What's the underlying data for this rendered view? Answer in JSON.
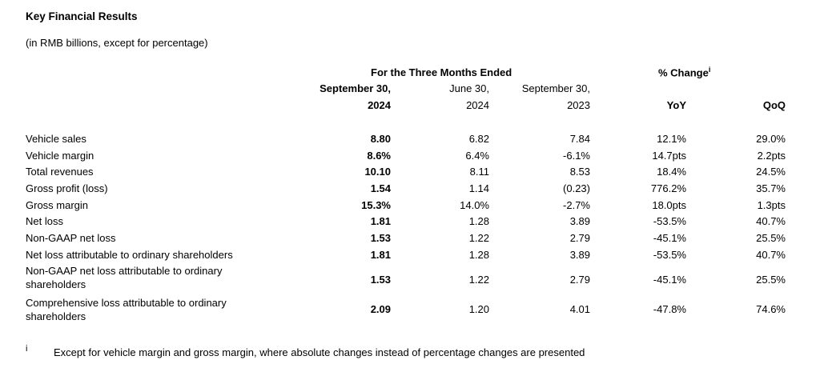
{
  "title": "Key Financial Results",
  "subtitle": "(in RMB billions, except for percentage)",
  "headers": {
    "group_three_months": "For the Three Months Ended",
    "group_change": "% Change",
    "group_change_sup": "i",
    "col1_line1": "September 30,",
    "col1_line2": "2024",
    "col2_line1": "June 30,",
    "col2_line2": "2024",
    "col3_line1": "September 30,",
    "col3_line2": "2023",
    "col4": "YoY",
    "col5": "QoQ"
  },
  "rows": [
    {
      "label": "Vehicle sales",
      "values": [
        "8.80",
        "6.82",
        "7.84",
        "12.1%",
        "29.0%"
      ]
    },
    {
      "label": "Vehicle margin",
      "values": [
        "8.6%",
        "6.4%",
        "-6.1%",
        "14.7pts",
        "2.2pts"
      ]
    },
    {
      "label": "Total revenues",
      "values": [
        "10.10",
        "8.11",
        "8.53",
        "18.4%",
        "24.5%"
      ]
    },
    {
      "label": "Gross profit (loss)",
      "values": [
        "1.54",
        "1.14",
        "(0.23)",
        "776.2%",
        "35.7%"
      ]
    },
    {
      "label": "Gross margin",
      "values": [
        "15.3%",
        "14.0%",
        "-2.7%",
        "18.0pts",
        "1.3pts"
      ]
    },
    {
      "label": "Net loss",
      "values": [
        "1.81",
        "1.28",
        "3.89",
        "-53.5%",
        "40.7%"
      ]
    },
    {
      "label": "Non-GAAP net loss",
      "values": [
        "1.53",
        "1.22",
        "2.79",
        "-45.1%",
        "25.5%"
      ]
    },
    {
      "label": "Net loss attributable to ordinary shareholders",
      "values": [
        "1.81",
        "1.28",
        "3.89",
        "-53.5%",
        "40.7%"
      ]
    },
    {
      "label_line1": "Non-GAAP net loss attributable to ordinary",
      "label_line2": "shareholders",
      "values": [
        "1.53",
        "1.22",
        "2.79",
        "-45.1%",
        "25.5%"
      ]
    },
    {
      "label_line1": "Comprehensive loss attributable to ordinary",
      "label_line2": "shareholders",
      "values": [
        "2.09",
        "1.20",
        "4.01",
        "-47.8%",
        "74.6%"
      ]
    }
  ],
  "footnote": {
    "mark": "i",
    "text": "Except for vehicle margin and gross margin, where absolute changes instead of percentage changes are presented"
  }
}
